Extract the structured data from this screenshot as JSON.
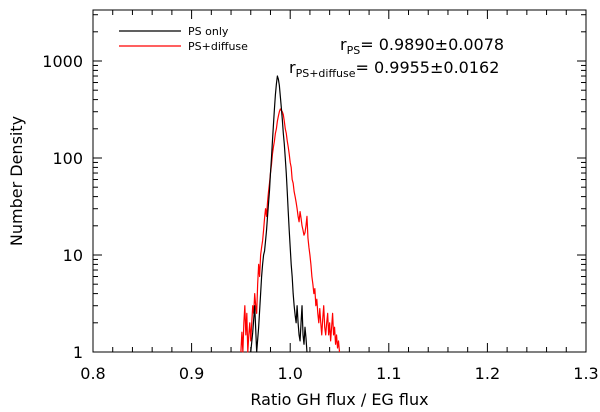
{
  "chart_data": {
    "type": "line",
    "title": "",
    "xlabel": "Ratio GH flux / EG flux",
    "ylabel": "Number Density",
    "xlim": [
      0.8,
      1.3
    ],
    "ylim": [
      1,
      4000
    ],
    "yscale": "log",
    "grid": false,
    "legend_position": "top-left",
    "x_ticks": [
      "0.8",
      "0.9",
      "1.0",
      "1.1",
      "1.2",
      "1.3"
    ],
    "y_ticks": [
      "1",
      "10",
      "100",
      "1000"
    ],
    "series": [
      {
        "name": "PS only",
        "color": "#000000",
        "x": [
          0.96,
          0.962,
          0.964,
          0.966,
          0.968,
          0.97,
          0.971,
          0.972,
          0.973,
          0.974,
          0.975,
          0.976,
          0.977,
          0.978,
          0.979,
          0.98,
          0.981,
          0.982,
          0.983,
          0.984,
          0.985,
          0.986,
          0.987,
          0.988,
          0.989,
          0.99,
          0.991,
          0.992,
          0.993,
          0.994,
          0.995,
          0.996,
          0.997,
          0.998,
          0.999,
          1.0,
          1.001,
          1.002,
          1.003,
          1.004,
          1.005,
          1.006,
          1.007,
          1.008,
          1.009,
          1.01,
          1.011,
          1.012,
          1.013,
          1.014,
          1.015,
          1.016,
          1.017
        ],
        "y": [
          1,
          1.6,
          3,
          1,
          1.8,
          4,
          6,
          8,
          10,
          11,
          14,
          18,
          25,
          34,
          46,
          70,
          100,
          150,
          220,
          320,
          450,
          580,
          700,
          650,
          560,
          430,
          330,
          250,
          180,
          140,
          100,
          70,
          45,
          28,
          18,
          12,
          8,
          6,
          4,
          3,
          2.4,
          2,
          3,
          2,
          1.5,
          1.3,
          2,
          3,
          1.5,
          1.2,
          1.8,
          1.4,
          1
        ]
      },
      {
        "name": "PS+diffuse",
        "color": "#ff0000",
        "x": [
          0.95,
          0.951,
          0.952,
          0.953,
          0.954,
          0.955,
          0.956,
          0.957,
          0.958,
          0.959,
          0.96,
          0.961,
          0.962,
          0.963,
          0.964,
          0.965,
          0.966,
          0.967,
          0.968,
          0.969,
          0.97,
          0.971,
          0.972,
          0.973,
          0.974,
          0.975,
          0.976,
          0.977,
          0.978,
          0.979,
          0.98,
          0.981,
          0.982,
          0.983,
          0.984,
          0.985,
          0.986,
          0.987,
          0.988,
          0.989,
          0.99,
          0.991,
          0.992,
          0.993,
          0.994,
          0.995,
          0.996,
          0.997,
          0.998,
          0.999,
          1.0,
          1.001,
          1.002,
          1.003,
          1.004,
          1.005,
          1.006,
          1.007,
          1.008,
          1.009,
          1.01,
          1.011,
          1.012,
          1.013,
          1.014,
          1.015,
          1.016,
          1.017,
          1.018,
          1.019,
          1.02,
          1.021,
          1.022,
          1.023,
          1.024,
          1.025,
          1.026,
          1.027,
          1.028,
          1.029,
          1.03,
          1.031,
          1.032,
          1.033,
          1.034,
          1.035,
          1.036,
          1.037,
          1.038,
          1.039,
          1.04,
          1.041,
          1.042,
          1.043,
          1.044,
          1.045,
          1.046,
          1.047,
          1.048,
          1.049,
          1.05
        ],
        "y": [
          1,
          1.6,
          1,
          2,
          3,
          1.5,
          2.5,
          1,
          1.5,
          2,
          1.3,
          2,
          3,
          2.5,
          4,
          3,
          2.5,
          5,
          8,
          6,
          10,
          12,
          14,
          18,
          24,
          30,
          25,
          35,
          45,
          55,
          70,
          85,
          110,
          130,
          150,
          180,
          200,
          240,
          270,
          300,
          320,
          310,
          300,
          280,
          240,
          200,
          180,
          150,
          130,
          110,
          90,
          80,
          60,
          55,
          45,
          40,
          35,
          30,
          25,
          22,
          28,
          24,
          20,
          18,
          16,
          17,
          20,
          25,
          15,
          12,
          10,
          8,
          6,
          5,
          4,
          4.5,
          3,
          3.5,
          2.5,
          2,
          2.8,
          2,
          1.5,
          2.2,
          3,
          1.8,
          1.5,
          2,
          2.5,
          1.5,
          2,
          1.3,
          1.8,
          2.5,
          1.5,
          1.8,
          1.2,
          1.5,
          1.1,
          1.3,
          1
        ]
      }
    ],
    "annotations": [
      {
        "main": "r",
        "sub": "PS",
        "value": "=  0.9890±0.0078"
      },
      {
        "main": "r",
        "sub": "PS+diffuse",
        "value": "=  0.9955±0.0162"
      }
    ]
  }
}
